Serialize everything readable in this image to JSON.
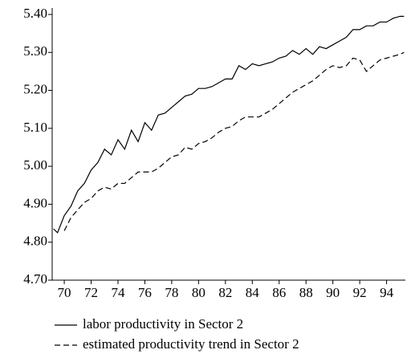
{
  "chart_data": {
    "type": "line",
    "x": [
      69.2,
      69.5,
      70,
      70.5,
      71,
      71.5,
      72,
      72.5,
      73,
      73.5,
      74,
      74.5,
      75,
      75.5,
      76,
      76.5,
      77,
      77.5,
      78,
      78.5,
      79,
      79.5,
      80,
      80.5,
      81,
      81.5,
      82,
      82.5,
      83,
      83.5,
      84,
      84.5,
      85,
      85.5,
      86,
      86.5,
      87,
      87.5,
      88,
      88.5,
      89,
      89.5,
      90,
      90.5,
      91,
      91.5,
      92,
      92.5,
      93,
      93.5,
      94,
      94.5,
      95,
      95.3
    ],
    "series": [
      {
        "name": "labor productivity in Sector 2",
        "color": "#000000",
        "dash": "none",
        "values": [
          4.835,
          4.825,
          4.87,
          4.895,
          4.935,
          4.955,
          4.99,
          5.01,
          5.045,
          5.03,
          5.07,
          5.045,
          5.095,
          5.065,
          5.115,
          5.095,
          5.135,
          5.14,
          5.155,
          5.17,
          5.185,
          5.19,
          5.205,
          5.205,
          5.21,
          5.22,
          5.23,
          5.23,
          5.265,
          5.255,
          5.27,
          5.265,
          5.27,
          5.275,
          5.285,
          5.29,
          5.305,
          5.295,
          5.31,
          5.295,
          5.315,
          5.31,
          5.32,
          5.33,
          5.34,
          5.36,
          5.36,
          5.37,
          5.37,
          5.38,
          5.38,
          5.39,
          5.395,
          5.395
        ]
      },
      {
        "name": "estimated productivity trend in Sector 2",
        "color": "#000000",
        "dash": "7,4",
        "values": [
          null,
          null,
          4.83,
          4.865,
          4.885,
          4.905,
          4.915,
          4.935,
          4.945,
          4.94,
          4.955,
          4.955,
          4.97,
          4.985,
          4.985,
          4.985,
          4.995,
          5.01,
          5.025,
          5.03,
          5.05,
          5.045,
          5.06,
          5.065,
          5.075,
          5.09,
          5.1,
          5.105,
          5.12,
          5.13,
          5.13,
          5.13,
          5.14,
          5.15,
          5.165,
          5.18,
          5.195,
          5.205,
          5.215,
          5.225,
          5.24,
          5.255,
          5.265,
          5.26,
          5.265,
          5.285,
          5.28,
          5.25,
          5.265,
          5.28,
          5.285,
          5.29,
          5.295,
          5.3
        ]
      }
    ],
    "xlim": [
      69.1,
      95.4
    ],
    "xticks": [
      70,
      72,
      74,
      76,
      78,
      80,
      82,
      84,
      86,
      88,
      90,
      92,
      94
    ],
    "ylim": [
      4.7,
      5.4
    ],
    "yticks": [
      {
        "value": 4.7,
        "label": "4.70"
      },
      {
        "value": 4.8,
        "label": "4.80"
      },
      {
        "value": 4.9,
        "label": "4.90"
      },
      {
        "value": 5.0,
        "label": "5.00"
      },
      {
        "value": 5.1,
        "label": "5.10"
      },
      {
        "value": 5.2,
        "label": "5.20"
      },
      {
        "value": 5.3,
        "label": "5.30"
      },
      {
        "value": 5.4,
        "label": "5.40"
      }
    ],
    "grid": false
  }
}
